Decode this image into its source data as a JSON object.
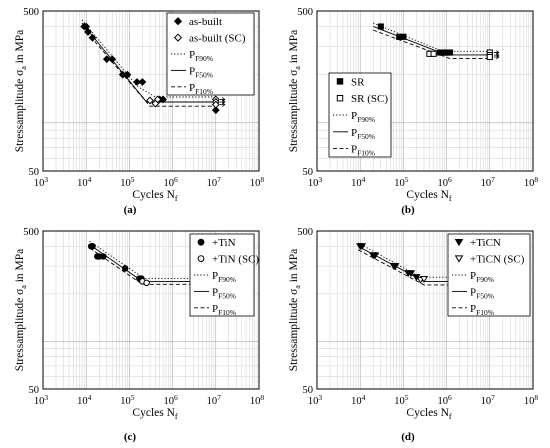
{
  "figure": {
    "panels": [
      {
        "panel_label": "(a)",
        "legend": [
          {
            "symbol": "diamond",
            "filled": true,
            "label": "as-built"
          },
          {
            "symbol": "diamond",
            "filled": false,
            "label": "as-built (SC)"
          },
          {
            "line": "dotted",
            "label": "P",
            "sub": "F90%"
          },
          {
            "line": "solid",
            "label": "P",
            "sub": "F50%"
          },
          {
            "line": "dashed",
            "label": "P",
            "sub": "F10%"
          }
        ]
      },
      {
        "panel_label": "(b)",
        "legend": [
          {
            "symbol": "square",
            "filled": true,
            "label": "SR"
          },
          {
            "symbol": "square",
            "filled": false,
            "label": "SR (SC)"
          },
          {
            "line": "dotted",
            "label": "P",
            "sub": "F90%"
          },
          {
            "line": "solid",
            "label": "P",
            "sub": "F50%"
          },
          {
            "line": "dashed",
            "label": "P",
            "sub": "F10%"
          }
        ]
      },
      {
        "panel_label": "(c)",
        "legend": [
          {
            "symbol": "circle",
            "filled": true,
            "label": "+TiN"
          },
          {
            "symbol": "circle",
            "filled": false,
            "label": "+TiN (SC)"
          },
          {
            "line": "dotted",
            "label": "P",
            "sub": "F90%"
          },
          {
            "line": "solid",
            "label": "P",
            "sub": "F50%"
          },
          {
            "line": "dashed",
            "label": "P",
            "sub": "F10%"
          }
        ]
      },
      {
        "panel_label": "(d)",
        "legend": [
          {
            "symbol": "triangle-down",
            "filled": true,
            "label": "+TiCN"
          },
          {
            "symbol": "triangle-down",
            "filled": false,
            "label": "+TiCN (SC)"
          },
          {
            "line": "dotted",
            "label": "P",
            "sub": "F90%"
          },
          {
            "line": "solid",
            "label": "P",
            "sub": "F50%"
          },
          {
            "line": "dashed",
            "label": "P",
            "sub": "F10%"
          }
        ]
      }
    ]
  },
  "chart_data": [
    {
      "type": "scatter",
      "panel": "(a)",
      "xlabel": "Cycles N_f",
      "ylabel": "Stressamplitude σ_a in MPa",
      "xscale": "log",
      "yscale": "log",
      "xlim": [
        1000,
        100000000
      ],
      "ylim": [
        50,
        500
      ],
      "xticks": [
        "10^3",
        "10^4",
        "10^5",
        "10^6",
        "10^7",
        "10^8"
      ],
      "yticks": [
        "50",
        "500"
      ],
      "grid": true,
      "legend_position": "top-right",
      "series": [
        {
          "name": "as-built",
          "marker": "diamond",
          "filled": true,
          "points": [
            [
              9000,
              400
            ],
            [
              10000,
              400
            ],
            [
              11000,
              370
            ],
            [
              14000,
              340
            ],
            [
              30000,
              250
            ],
            [
              40000,
              250
            ],
            [
              70000,
              200
            ],
            [
              90000,
              200
            ],
            [
              150000,
              180
            ],
            [
              200000,
              180
            ],
            [
              500000,
              140
            ],
            [
              600000,
              140
            ],
            [
              10000000,
              120
            ]
          ]
        },
        {
          "name": "as-built (SC)",
          "marker": "diamond",
          "filled": false,
          "points": [
            [
              300000,
              138
            ],
            [
              450000,
              140
            ],
            [
              400000,
              132
            ],
            [
              10000000,
              140
            ],
            [
              10000000,
              135
            ],
            [
              10000000,
              130
            ]
          ]
        },
        {
          "name": "P_F90%",
          "line": "dotted",
          "points": [
            [
              8000,
              440
            ],
            [
              150000,
              170
            ],
            [
              400000,
              145
            ],
            [
              10000000,
              145
            ]
          ]
        },
        {
          "name": "P_F50%",
          "line": "solid",
          "points": [
            [
              8000,
              420
            ],
            [
              250000,
              135
            ],
            [
              10000000,
              135
            ]
          ]
        },
        {
          "name": "P_F10%",
          "line": "dashed",
          "points": [
            [
              8000,
              400
            ],
            [
              300000,
              127
            ],
            [
              10000000,
              127
            ]
          ]
        }
      ]
    },
    {
      "type": "scatter",
      "panel": "(b)",
      "xlabel": "Cycles N_f",
      "ylabel": "Stressamplitude σ_a in MPa",
      "xscale": "log",
      "yscale": "log",
      "xlim": [
        1000,
        100000000
      ],
      "ylim": [
        50,
        500
      ],
      "xticks": [
        "10^3",
        "10^4",
        "10^5",
        "10^6",
        "10^7",
        "10^8"
      ],
      "yticks": [
        "50",
        "500"
      ],
      "grid": true,
      "legend_position": "middle-left",
      "series": [
        {
          "name": "SR",
          "marker": "square",
          "filled": true,
          "points": [
            [
              30000,
              400
            ],
            [
              80000,
              345
            ],
            [
              100000,
              345
            ],
            [
              700000,
              275
            ],
            [
              800000,
              275
            ],
            [
              900000,
              275
            ],
            [
              1000000,
              275
            ],
            [
              1200000,
              275
            ]
          ]
        },
        {
          "name": "SR (SC)",
          "marker": "square",
          "filled": false,
          "points": [
            [
              400000,
              270
            ],
            [
              500000,
              270
            ],
            [
              10000000,
              275
            ],
            [
              10000000,
              265
            ],
            [
              10000000,
              258
            ]
          ]
        },
        {
          "name": "P_F90%",
          "line": "dotted",
          "points": [
            [
              20000,
              420
            ],
            [
              800000,
              280
            ],
            [
              10000000,
              280
            ]
          ]
        },
        {
          "name": "P_F50%",
          "line": "solid",
          "points": [
            [
              20000,
              400
            ],
            [
              1000000,
              266
            ],
            [
              10000000,
              266
            ]
          ]
        },
        {
          "name": "P_F10%",
          "line": "dashed",
          "points": [
            [
              20000,
              380
            ],
            [
              1200000,
              252
            ],
            [
              10000000,
              252
            ]
          ]
        }
      ]
    },
    {
      "type": "scatter",
      "panel": "(c)",
      "xlabel": "Cycles N_f",
      "ylabel": "Stressamplitude σ_a in MPa",
      "xscale": "log",
      "yscale": "log",
      "xlim": [
        1000,
        100000000
      ],
      "ylim": [
        50,
        500
      ],
      "xticks": [
        "10^3",
        "10^4",
        "10^5",
        "10^6",
        "10^7",
        "10^8"
      ],
      "yticks": [
        "50",
        "500"
      ],
      "grid": true,
      "legend_position": "top-right",
      "series": [
        {
          "name": "+TiN",
          "marker": "circle",
          "filled": true,
          "points": [
            [
              13000,
              400
            ],
            [
              14000,
              400
            ],
            [
              18000,
              345
            ],
            [
              20000,
              345
            ],
            [
              25000,
              345
            ],
            [
              80000,
              290
            ],
            [
              170000,
              250
            ],
            [
              190000,
              250
            ]
          ]
        },
        {
          "name": "+TiN (SC)",
          "marker": "circle",
          "filled": false,
          "points": [
            [
              200000,
              240
            ],
            [
              250000,
              235
            ],
            [
              10000000,
              240
            ],
            [
              10000000,
              235
            ]
          ]
        },
        {
          "name": "P_F90%",
          "line": "dotted",
          "points": [
            [
              12000,
              430
            ],
            [
              220000,
              250
            ],
            [
              10000000,
              250
            ]
          ]
        },
        {
          "name": "P_F50%",
          "line": "solid",
          "points": [
            [
              12000,
              410
            ],
            [
              200000,
              240
            ],
            [
              10000000,
              240
            ]
          ]
        },
        {
          "name": "P_F10%",
          "line": "dashed",
          "points": [
            [
              12000,
              390
            ],
            [
              200000,
              230
            ],
            [
              10000000,
              230
            ]
          ]
        }
      ]
    },
    {
      "type": "scatter",
      "panel": "(d)",
      "xlabel": "Cycles N_f",
      "ylabel": "Stressamplitude σ_a in MPa",
      "xscale": "log",
      "yscale": "log",
      "xlim": [
        1000,
        100000000
      ],
      "ylim": [
        50,
        500
      ],
      "xticks": [
        "10^3",
        "10^4",
        "10^5",
        "10^6",
        "10^7",
        "10^8"
      ],
      "yticks": [
        "50",
        "500"
      ],
      "grid": true,
      "legend_position": "top-right",
      "series": [
        {
          "name": "+TiCN",
          "marker": "triangle-down",
          "filled": true,
          "points": [
            [
              10000,
              400
            ],
            [
              11000,
              400
            ],
            [
              20000,
              350
            ],
            [
              22000,
              350
            ],
            [
              60000,
              300
            ],
            [
              65000,
              300
            ],
            [
              130000,
              270
            ],
            [
              150000,
              270
            ],
            [
              200000,
              255
            ],
            [
              10000000,
              215
            ]
          ]
        },
        {
          "name": "+TiCN (SC)",
          "marker": "triangle-down",
          "filled": false,
          "points": [
            [
              250000,
              245
            ],
            [
              300000,
              248
            ],
            [
              10000000,
              250
            ],
            [
              10000000,
              242
            ],
            [
              10000000,
              235
            ]
          ]
        },
        {
          "name": "P_F90%",
          "line": "dotted",
          "points": [
            [
              9000,
              420
            ],
            [
              250000,
              255
            ],
            [
              10000000,
              255
            ]
          ]
        },
        {
          "name": "P_F50%",
          "line": "solid",
          "points": [
            [
              9000,
              400
            ],
            [
              300000,
              240
            ],
            [
              10000000,
              240
            ]
          ]
        },
        {
          "name": "P_F10%",
          "line": "dashed",
          "points": [
            [
              9000,
              380
            ],
            [
              300000,
              228
            ],
            [
              10000000,
              228
            ]
          ]
        }
      ]
    }
  ]
}
